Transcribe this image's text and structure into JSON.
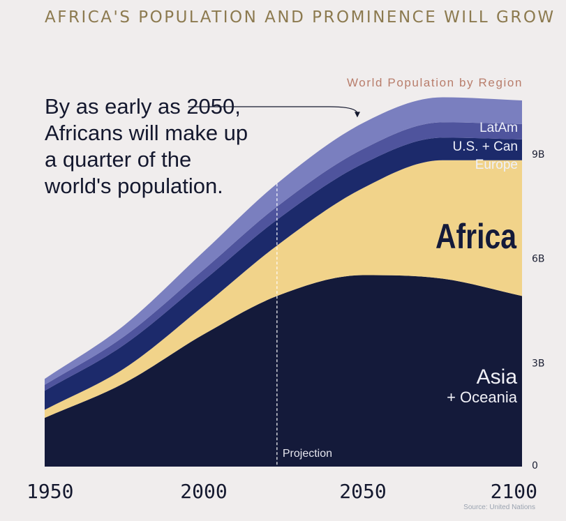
{
  "headline": "AFRICA'S POPULATION AND PROMINENCE WILL GROW",
  "callout": "By as early as 2050, Africans will make up a quarter of the world's population.",
  "source": "Source: United Nations",
  "colors": {
    "background": "#f0eded",
    "asia_oceania": "#141a3a",
    "africa": "#f1d38a",
    "europe": "#1c2a6b",
    "us_can": "#4f549d",
    "latam": "#7a7fbf",
    "headline": "#8c7a4f",
    "subtitle": "#b87d6b"
  },
  "chart_data": {
    "type": "area",
    "stacked": true,
    "title": "World Population by Region",
    "x": [
      1950,
      1975,
      2000,
      2023,
      2050,
      2075,
      2100
    ],
    "series": [
      {
        "name": "Asia + Oceania",
        "label_line1": "Asia",
        "label_line2": "+ Oceania",
        "values": [
          1.4,
          2.4,
          3.8,
          4.9,
          5.5,
          5.4,
          4.9
        ]
      },
      {
        "name": "Africa",
        "label_line1": "Africa",
        "values": [
          0.23,
          0.42,
          0.82,
          1.45,
          2.5,
          3.4,
          3.9
        ]
      },
      {
        "name": "Europe",
        "label_line1": "Europe",
        "values": [
          0.55,
          0.68,
          0.73,
          0.74,
          0.7,
          0.65,
          0.6
        ]
      },
      {
        "name": "U.S. + Can",
        "label_line1": "U.S. + Can",
        "values": [
          0.17,
          0.24,
          0.31,
          0.38,
          0.42,
          0.44,
          0.44
        ]
      },
      {
        "name": "LatAm",
        "label_line1": "LatAm",
        "values": [
          0.17,
          0.32,
          0.52,
          0.66,
          0.75,
          0.72,
          0.68
        ]
      }
    ],
    "xticks": [
      1950,
      2000,
      2050,
      2100
    ],
    "xtick_labels": [
      "1950",
      "2000",
      "2050",
      "2100"
    ],
    "yticks": [
      0,
      3,
      6,
      9
    ],
    "ytick_labels": [
      "0",
      "3B",
      "6B",
      "9B"
    ],
    "ylim": [
      0,
      11
    ],
    "xlim": [
      1950,
      2100
    ],
    "projection_start": 2023,
    "projection_label": "Projection",
    "annotation_target_year": 2050
  }
}
